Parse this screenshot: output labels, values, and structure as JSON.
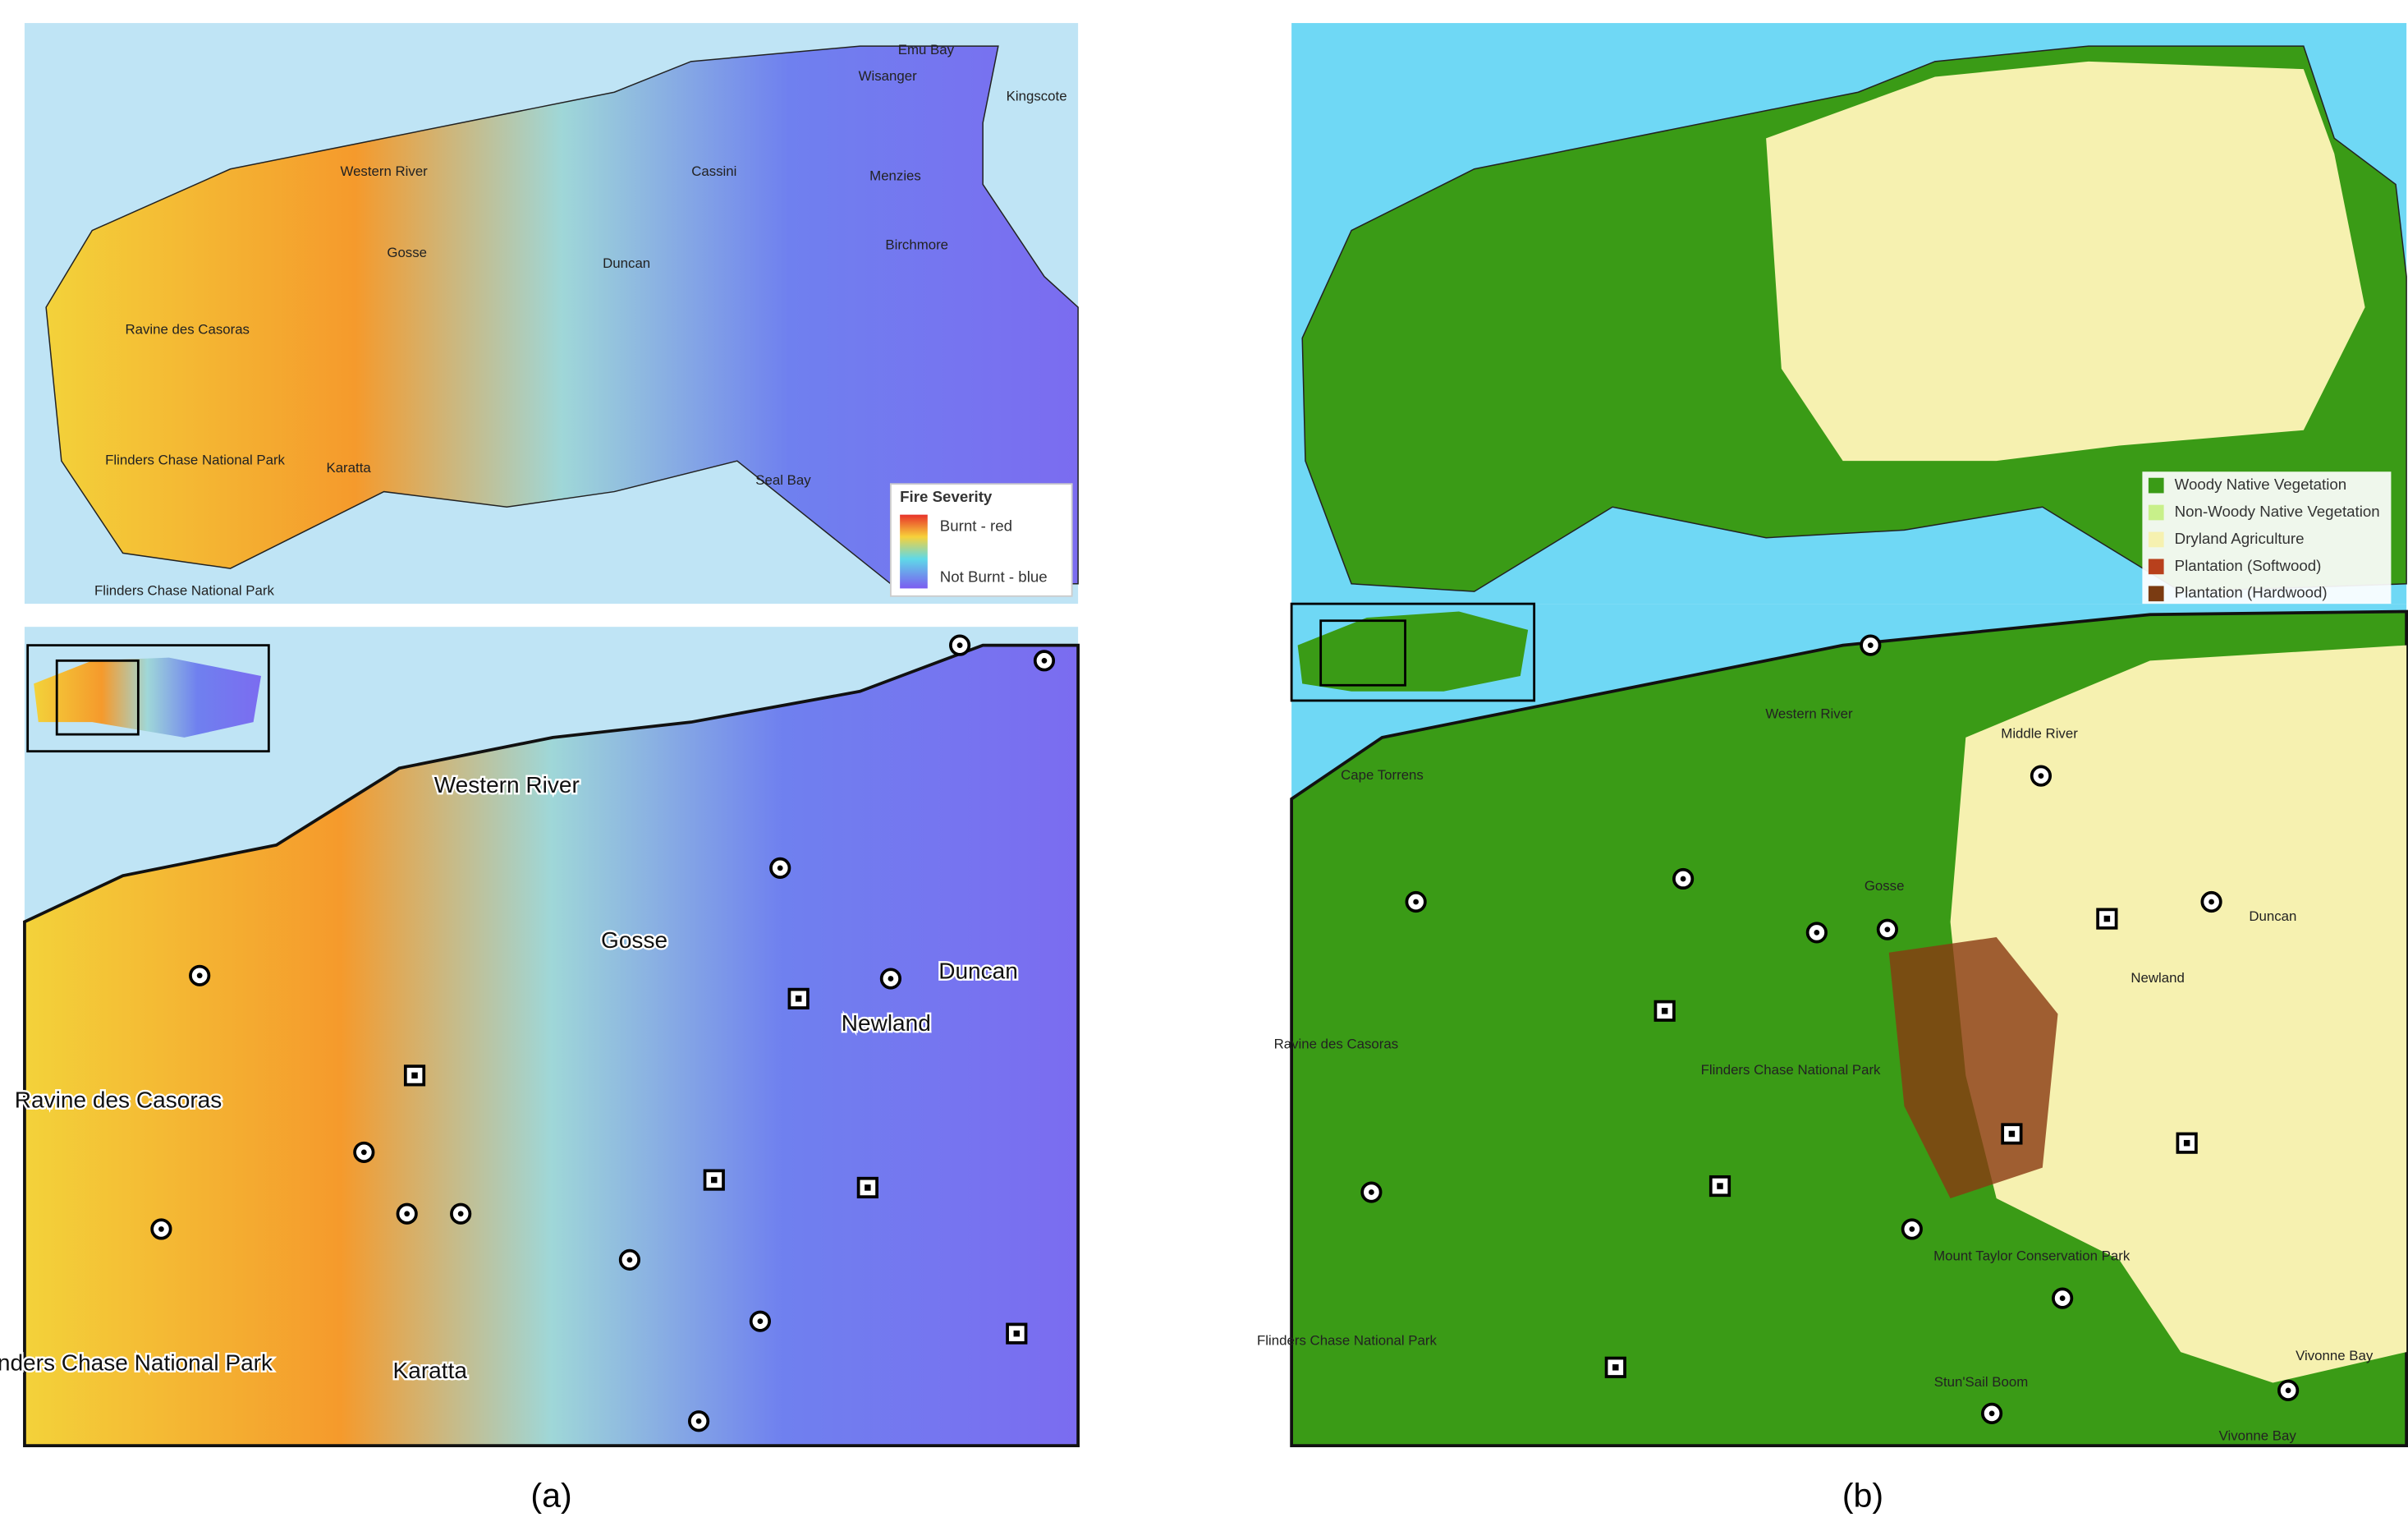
{
  "panels": [
    {
      "caption": "(a)",
      "legend": {
        "title": "Fire Severity",
        "items": [
          "Burnt - red",
          "Not Burnt - blue"
        ]
      },
      "overview_labels": [
        "Emu Bay",
        "Wisanger",
        "Kingscote",
        "Menzies",
        "Western River",
        "Cassini",
        "Gosse",
        "Duncan",
        "Birchmore",
        "Ravine des Casoras",
        "Flinders Chase National Park",
        "Karatta",
        "Seal Bay",
        "Flinders Chase National Park"
      ],
      "detail_labels": [
        "Western River",
        "Gosse",
        "Duncan",
        "Newland",
        "Ravine des Casoras",
        "Flinders Chase National Park",
        "Karatta"
      ]
    },
    {
      "caption": "(b)",
      "legend": {
        "items": [
          "Woody Native Vegetation",
          "Non-Woody Native Vegetation",
          "Dryland Agriculture",
          "Plantation (Softwood)",
          "Plantation (Hardwood)"
        ]
      },
      "detail_labels": [
        "Western River",
        "Middle River",
        "Cape Torrens",
        "Gosse",
        "Duncan",
        "Newland",
        "Ravine des Casoras",
        "Flinders Chase National Park",
        "Mount Taylor Conservation Park",
        "Flinders Chase National Park",
        "Vivonne Bay",
        "Stun'Sail Boom",
        "Vivonne Bay"
      ]
    }
  ]
}
